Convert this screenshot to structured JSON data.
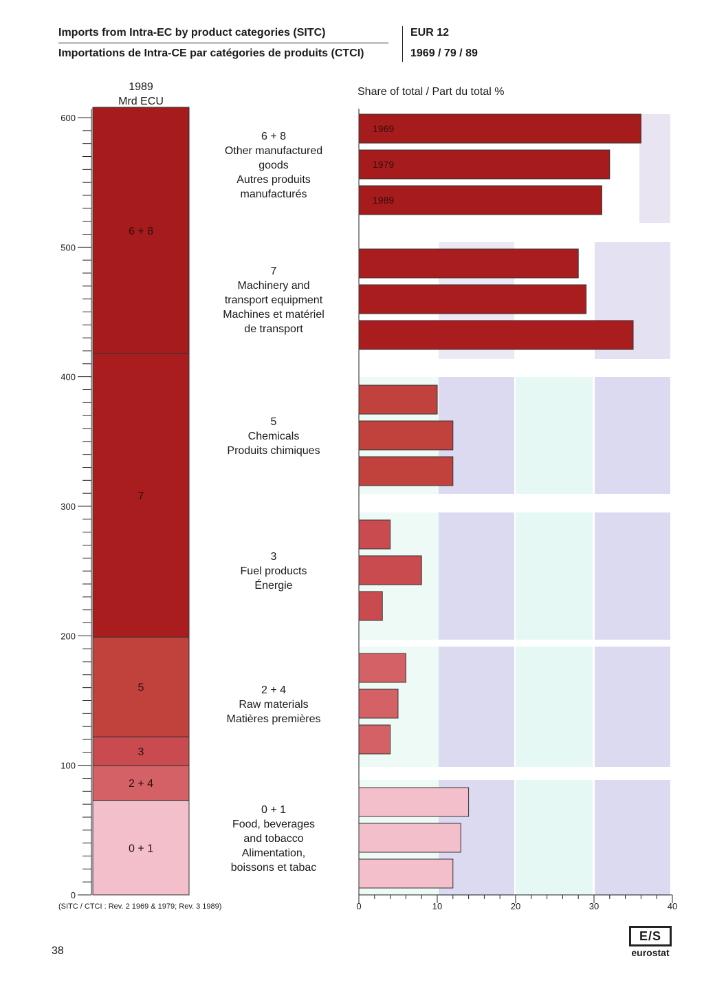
{
  "header": {
    "title_en": "Imports from Intra-EC by product categories (SITC)",
    "title_fr": "Importations de Intra-CE par catégories de produits (CTCI)",
    "region": "EUR 12",
    "years": "1969 / 79 / 89"
  },
  "stack_header": {
    "year": "1989",
    "unit": "Mrd ECU"
  },
  "share_header": "Share of total / Part du total  %",
  "footnote": "(SITC / CTCI : Rev. 2 1969 & 1979; Rev. 3 1989)",
  "page_number": "38",
  "logo": {
    "mark": "E/S",
    "text": "eurostat"
  },
  "colors": {
    "cat_6_8": "#a61b1b",
    "cat_7": "#a91d1f",
    "cat_5": "#c1413d",
    "cat_3": "#c94b50",
    "cat_2_4": "#d46165",
    "cat_0_1": "#f2bfca"
  },
  "chart_data": [
    {
      "type": "bar",
      "subtype": "stacked-column",
      "title": "1989 Mrd ECU",
      "ylim": [
        0,
        600
      ],
      "ytick_labels": [
        "0",
        "100",
        "200",
        "300",
        "400",
        "500",
        "600"
      ],
      "segments": [
        {
          "label": "0 + 1",
          "value": 73
        },
        {
          "label": "2 + 4",
          "value": 27
        },
        {
          "label": "3",
          "value": 22
        },
        {
          "label": "5",
          "value": 77
        },
        {
          "label": "7",
          "value": 219
        },
        {
          "label": "6 + 8",
          "value": 190
        }
      ]
    },
    {
      "type": "bar",
      "subtype": "horizontal-grouped",
      "title": "Share of total / Part du total  %",
      "xlim": [
        0,
        40
      ],
      "xtick_labels": [
        "0",
        "10",
        "20",
        "30",
        "40"
      ],
      "grid": false,
      "series": [
        {
          "name": "1969",
          "values": [
            36,
            28,
            10,
            4,
            6,
            14
          ]
        },
        {
          "name": "1979",
          "values": [
            32,
            29,
            12,
            8,
            5,
            13
          ]
        },
        {
          "name": "1989",
          "values": [
            31,
            35,
            12,
            3,
            4,
            12
          ]
        }
      ],
      "groups": [
        {
          "code": "6 + 8",
          "en": "Other manufactured goods",
          "fr": "Autres produits manufacturés",
          "lines": [
            "6 + 8",
            "Other manufactured",
            "goods",
            "Autres produits",
            "manufacturés"
          ]
        },
        {
          "code": "7",
          "en": "Machinery and transport equipment",
          "fr": "Machines et matériel de transport",
          "lines": [
            "7",
            "Machinery and",
            "transport equipment",
            "Machines et matériel",
            "de transport"
          ]
        },
        {
          "code": "5",
          "en": "Chemicals",
          "fr": "Produits chimiques",
          "lines": [
            "5",
            "Chemicals",
            "Produits chimiques"
          ]
        },
        {
          "code": "3",
          "en": "Fuel products",
          "fr": "Énergie",
          "lines": [
            "3",
            "Fuel products",
            "Énergie"
          ]
        },
        {
          "code": "2 + 4",
          "en": "Raw materials",
          "fr": "Matières premières",
          "lines": [
            "2 + 4",
            "Raw materials",
            "Matières premières"
          ]
        },
        {
          "code": "0 + 1",
          "en": "Food, beverages and tobacco",
          "fr": "Alimentation, boissons et tabac",
          "lines": [
            "0 + 1",
            "Food, beverages",
            "and tobacco",
            "Alimentation,",
            "boissons et tabac"
          ]
        }
      ],
      "bar_labels_group_1": [
        "1969",
        "1979",
        "1989"
      ]
    }
  ]
}
